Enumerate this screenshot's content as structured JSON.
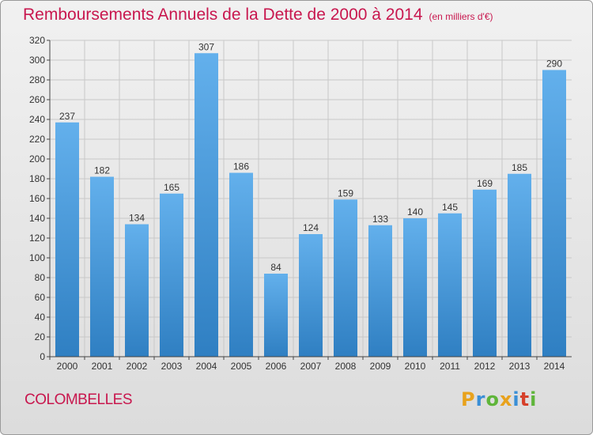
{
  "header": {
    "title": "Remboursements Annuels de la Dette de 2000 à 2014",
    "unit": "(en milliers d'€)"
  },
  "footer": {
    "commune": "COLOMBELLES",
    "brand": {
      "letters": [
        "P",
        "r",
        "o",
        "x",
        "i",
        "t",
        "i"
      ],
      "colors": [
        "#e8a21c",
        "#3a8fd6",
        "#5fb53a",
        "#e8a21c",
        "#3a8fd6",
        "#d6402a",
        "#5fb53a"
      ]
    }
  },
  "colors": {
    "title": "#c8174e",
    "bar_light": "#63b0ec",
    "bar_dark": "#2f7fc2",
    "grid": "#c8c8c8",
    "axis": "#444444"
  },
  "chart_data": {
    "type": "bar",
    "title": "Remboursements Annuels de la Dette de 2000 à 2014",
    "xlabel": "",
    "ylabel": "",
    "categories": [
      "2000",
      "2001",
      "2002",
      "2003",
      "2004",
      "2005",
      "2006",
      "2007",
      "2008",
      "2009",
      "2010",
      "2011",
      "2012",
      "2013",
      "2014"
    ],
    "values": [
      237,
      182,
      134,
      165,
      307,
      186,
      84,
      124,
      159,
      133,
      140,
      145,
      169,
      185,
      290
    ],
    "ylim": [
      0,
      320
    ],
    "ytick_step": 20,
    "grid": true
  }
}
